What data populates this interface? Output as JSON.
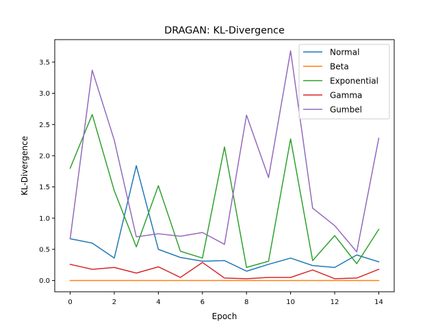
{
  "chart_data": {
    "type": "line",
    "title": "DRAGAN: KL-Divergence",
    "xlabel": "Epoch",
    "ylabel": "KL-Divergence",
    "xlim": [
      -0.7,
      14.7
    ],
    "ylim": [
      -0.18,
      3.86
    ],
    "xticks": [
      0,
      2,
      4,
      6,
      8,
      10,
      12,
      14
    ],
    "xtick_labels": [
      "0",
      "2",
      "4",
      "6",
      "8",
      "10",
      "12",
      "14"
    ],
    "yticks": [
      0.0,
      0.5,
      1.0,
      1.5,
      2.0,
      2.5,
      3.0,
      3.5
    ],
    "ytick_labels": [
      "0.0",
      "0.5",
      "1.0",
      "1.5",
      "2.0",
      "2.5",
      "3.0",
      "3.5"
    ],
    "grid": false,
    "legend_position": "top-right",
    "x": [
      0,
      1,
      2,
      3,
      4,
      5,
      6,
      7,
      8,
      9,
      10,
      11,
      12,
      13,
      14
    ],
    "series": [
      {
        "name": "Normal",
        "color": "#1f77b4",
        "values": [
          0.67,
          0.6,
          0.36,
          1.84,
          0.5,
          0.37,
          0.31,
          0.32,
          0.15,
          0.26,
          0.36,
          0.24,
          0.21,
          0.41,
          0.3
        ]
      },
      {
        "name": "Beta",
        "color": "#ff7f0e",
        "values": [
          0.0,
          0.0,
          0.0,
          0.0,
          0.0,
          0.0,
          0.0,
          0.0,
          0.0,
          0.0,
          0.0,
          0.0,
          0.0,
          0.0,
          0.0
        ]
      },
      {
        "name": "Exponential",
        "color": "#2ca02c",
        "values": [
          1.8,
          2.66,
          1.44,
          0.54,
          1.52,
          0.47,
          0.36,
          2.14,
          0.21,
          0.31,
          2.27,
          0.32,
          0.72,
          0.27,
          0.82
        ]
      },
      {
        "name": "Gamma",
        "color": "#d62728",
        "values": [
          0.26,
          0.18,
          0.21,
          0.12,
          0.22,
          0.05,
          0.29,
          0.04,
          0.03,
          0.05,
          0.05,
          0.17,
          0.03,
          0.04,
          0.18
        ]
      },
      {
        "name": "Gumbel",
        "color": "#9467bd",
        "values": [
          0.67,
          3.37,
          2.25,
          0.7,
          0.75,
          0.71,
          0.77,
          0.58,
          2.65,
          1.65,
          3.68,
          1.16,
          0.88,
          0.46,
          2.28
        ]
      }
    ]
  }
}
